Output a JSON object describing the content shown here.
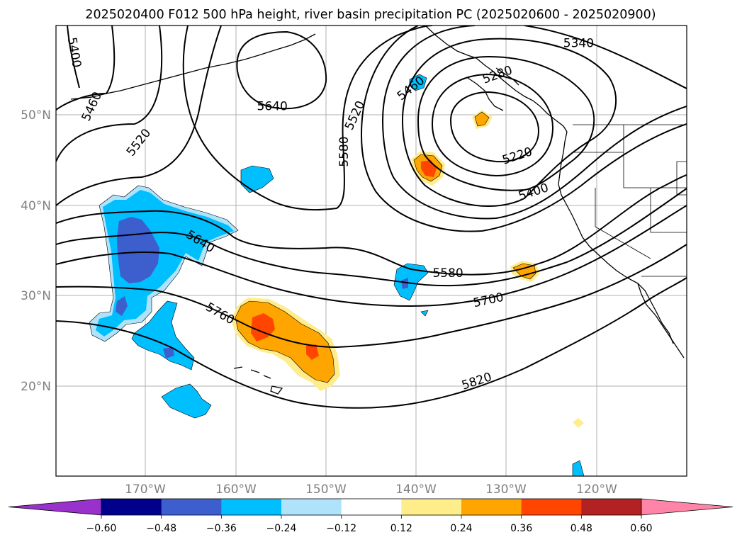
{
  "title": "2025020400 F012 500 hPa height, river basin precipitation PC (2025020600 - 2025020900)",
  "map": {
    "lat_labels": [
      "50°N",
      "40°N",
      "30°N",
      "20°N"
    ],
    "lon_labels": [
      "170°W",
      "160°W",
      "150°W",
      "140°W",
      "130°W",
      "120°W"
    ],
    "extent": {
      "lon_min": -180,
      "lon_max": -110,
      "lat_min": 10,
      "lat_max": 60
    }
  },
  "contours": {
    "variable": "500 hPa height",
    "labels": [
      {
        "id": "c5400a",
        "text": "5400",
        "lon": -178,
        "lat": 57
      },
      {
        "id": "c5460a",
        "text": "5460",
        "lon": -176,
        "lat": 51
      },
      {
        "id": "c5520a",
        "text": "5520",
        "lon": -170.8,
        "lat": 47
      },
      {
        "id": "c5640a",
        "text": "5640",
        "lon": -156,
        "lat": 51
      },
      {
        "id": "c5580a",
        "text": "5580",
        "lon": -148,
        "lat": 46
      },
      {
        "id": "c5520b",
        "text": "5520",
        "lon": -146.8,
        "lat": 50
      },
      {
        "id": "c5460b",
        "text": "5460",
        "lon": -140.6,
        "lat": 53
      },
      {
        "id": "c5280",
        "text": "5280",
        "lon": -131,
        "lat": 54.5
      },
      {
        "id": "c5340",
        "text": "5340",
        "lon": -122,
        "lat": 58
      },
      {
        "id": "c5220",
        "text": "5220",
        "lon": -128.8,
        "lat": 45.5
      },
      {
        "id": "c5400b",
        "text": "5400",
        "lon": -127,
        "lat": 41.5
      },
      {
        "id": "c5640b",
        "text": "5640",
        "lon": -164,
        "lat": 36
      },
      {
        "id": "c5580b",
        "text": "5580",
        "lon": -136.5,
        "lat": 32.5
      },
      {
        "id": "c5700",
        "text": "5700",
        "lon": -132,
        "lat": 29.5
      },
      {
        "id": "c5760",
        "text": "5760",
        "lon": -161.8,
        "lat": 28
      },
      {
        "id": "c5820",
        "text": "5820",
        "lon": -133.3,
        "lat": 20.5
      }
    ]
  },
  "colorbar": {
    "ticks": [
      "−0.60",
      "−0.48",
      "−0.36",
      "−0.24",
      "−0.12",
      "0.12",
      "0.24",
      "0.36",
      "0.48",
      "0.60"
    ],
    "colors": [
      "#9932cc",
      "#00008b",
      "#3c5fcd",
      "#00bfff",
      "#aee3fb",
      "#ffffff",
      "#ffec8b",
      "#ffa500",
      "#ff4500",
      "#b22222",
      "#ff85a8"
    ]
  }
}
